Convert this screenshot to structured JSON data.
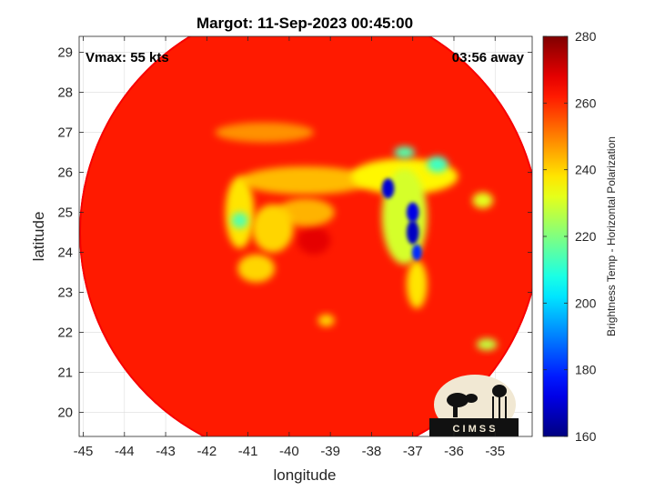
{
  "chart_data": {
    "type": "heatmap",
    "title": "Margot: 11-Sep-2023 00:45:00",
    "xlabel": "longitude",
    "ylabel": "latitude",
    "xlim": [
      -45.1,
      -34.1
    ],
    "ylim": [
      19.4,
      29.4
    ],
    "x_ticks": [
      -45,
      -44,
      -43,
      -42,
      -41,
      -40,
      -39,
      -38,
      -37,
      -36,
      -35
    ],
    "y_ticks": [
      20,
      21,
      22,
      23,
      24,
      25,
      26,
      27,
      28,
      29
    ],
    "grid": true,
    "annotations": {
      "vmax": "Vmax: 55 kts",
      "away": "03:56 away"
    },
    "colorbar": {
      "label": "Brightness Temp - Horizontal Polarization",
      "range": [
        160,
        280
      ],
      "ticks": [
        160,
        180,
        200,
        220,
        240,
        260,
        280
      ],
      "colormap": "jet",
      "position": "right"
    },
    "storm_center": {
      "lon": -39.5,
      "lat": 24.3
    },
    "scan_footprint": {
      "center_lon": -39.5,
      "center_lat": 24.5,
      "radius_deg": 5.6
    },
    "background_temp": 262,
    "features": [
      {
        "name": "eye",
        "lon": -39.4,
        "lat": 24.3,
        "rx": 0.4,
        "ry": 0.35,
        "value": 268
      },
      {
        "name": "inner-eyewall-west",
        "lon": -40.4,
        "lat": 24.6,
        "rx": 0.5,
        "ry": 0.6,
        "value": 240
      },
      {
        "name": "eyewall-north",
        "lon": -39.6,
        "lat": 25.0,
        "rx": 0.7,
        "ry": 0.35,
        "value": 244
      },
      {
        "name": "rainband-north-arc",
        "lon": -39.6,
        "lat": 25.8,
        "rx": 1.6,
        "ry": 0.35,
        "value": 243
      },
      {
        "name": "rainband-west-arc",
        "lon": -41.2,
        "lat": 25.0,
        "rx": 0.35,
        "ry": 0.9,
        "value": 238
      },
      {
        "name": "rainband-west-lower",
        "lon": -40.8,
        "lat": 23.6,
        "rx": 0.45,
        "ry": 0.35,
        "value": 240
      },
      {
        "name": "band-west-spot",
        "lon": -41.2,
        "lat": 24.8,
        "rx": 0.2,
        "ry": 0.2,
        "value": 215
      },
      {
        "name": "northeast-shelf",
        "lon": -37.2,
        "lat": 25.9,
        "rx": 1.3,
        "ry": 0.45,
        "value": 236
      },
      {
        "name": "northeast-shelf-spot-1",
        "lon": -36.4,
        "lat": 26.2,
        "rx": 0.25,
        "ry": 0.2,
        "value": 212
      },
      {
        "name": "northeast-shelf-spot-2",
        "lon": -37.2,
        "lat": 26.5,
        "rx": 0.25,
        "ry": 0.15,
        "value": 215
      },
      {
        "name": "eastern-band-upper",
        "lon": -37.6,
        "lat": 25.6,
        "rx": 0.15,
        "ry": 0.25,
        "value": 170
      },
      {
        "name": "eastern-band-mid",
        "lon": -37.0,
        "lat": 25.0,
        "rx": 0.15,
        "ry": 0.25,
        "value": 172
      },
      {
        "name": "eastern-band-core",
        "lon": -37.0,
        "lat": 24.5,
        "rx": 0.15,
        "ry": 0.3,
        "value": 168
      },
      {
        "name": "eastern-band-lower",
        "lon": -36.9,
        "lat": 24.0,
        "rx": 0.12,
        "ry": 0.2,
        "value": 180
      },
      {
        "name": "eastern-band-halo",
        "lon": -37.2,
        "lat": 24.9,
        "rx": 0.55,
        "ry": 1.2,
        "value": 230
      },
      {
        "name": "east-tail",
        "lon": -36.9,
        "lat": 23.2,
        "rx": 0.25,
        "ry": 0.6,
        "value": 238
      },
      {
        "name": "northwest-band",
        "lon": -40.6,
        "lat": 27.0,
        "rx": 1.2,
        "ry": 0.25,
        "value": 248
      },
      {
        "name": "southeast-spot",
        "lon": -35.2,
        "lat": 21.7,
        "rx": 0.25,
        "ry": 0.15,
        "value": 228
      },
      {
        "name": "east-edge-spot",
        "lon": -35.3,
        "lat": 25.3,
        "rx": 0.25,
        "ry": 0.2,
        "value": 232
      },
      {
        "name": "south-spot",
        "lon": -39.1,
        "lat": 22.3,
        "rx": 0.2,
        "ry": 0.15,
        "value": 240
      }
    ]
  },
  "logo": {
    "text": "C I M S S"
  }
}
